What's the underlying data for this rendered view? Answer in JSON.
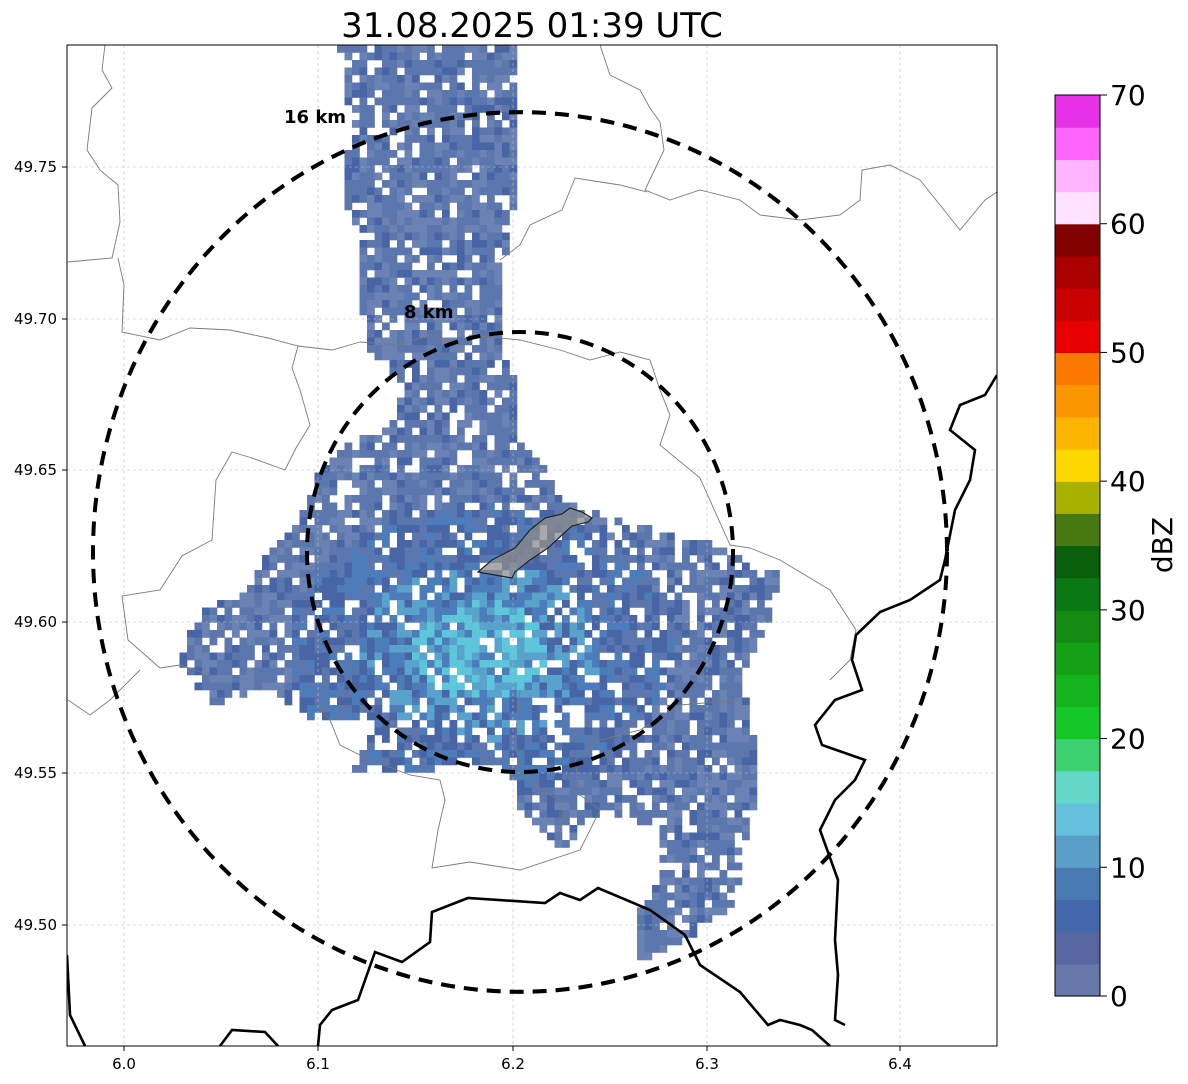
{
  "title": "31.08.2025 01:39 UTC",
  "map": {
    "lon_range": [
      5.97,
      6.45
    ],
    "lat_range": [
      49.46,
      49.79
    ],
    "x_ticks": [
      "6.0",
      "6.1",
      "6.2",
      "6.3",
      "6.4"
    ],
    "y_ticks": [
      "49.50",
      "49.55",
      "49.60",
      "49.65",
      "49.70",
      "49.75"
    ],
    "grid": true,
    "range_rings": [
      {
        "label": "8 km"
      },
      {
        "label": "16 km"
      }
    ]
  },
  "colorbar": {
    "label": "dBZ",
    "ticks": [
      "0",
      "10",
      "20",
      "30",
      "40",
      "50",
      "60",
      "70"
    ],
    "step_dbz": 2.5,
    "colors": [
      "#6677aa",
      "#5566a0",
      "#4466aa",
      "#4a7ab4",
      "#5a9fc8",
      "#64c0dc",
      "#64d8c8",
      "#3cd070",
      "#14c828",
      "#14b41e",
      "#14a014",
      "#148c14",
      "#0a7814",
      "#0a5f0a",
      "#467814",
      "#a8b000",
      "#ffd700",
      "#fcb400",
      "#fc9600",
      "#fc7800",
      "#e60000",
      "#c80000",
      "#aa0000",
      "#820000",
      "#ffe0ff",
      "#ffb4ff",
      "#ff64ff",
      "#e632e6"
    ],
    "echo_colors": [
      "#6a82b4",
      "#5b77ad",
      "#4866a6",
      "#4c7cba",
      "#58a2cc",
      "#5ec6da"
    ]
  },
  "legend_colors": {
    "border": "#000000",
    "outline": "#7a7a7a"
  }
}
